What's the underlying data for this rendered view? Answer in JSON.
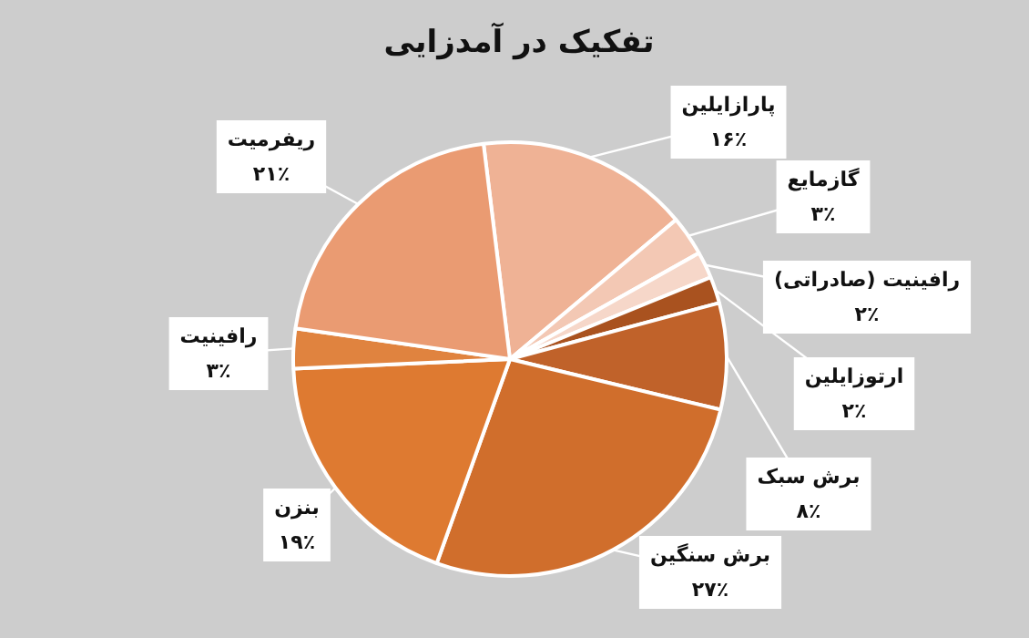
{
  "chart_data": {
    "type": "pie",
    "title": "تفکیک در آمدزایی",
    "categories": [
      "پارازایلین",
      "گازمایع",
      "رافینیت (صادراتی)",
      "ارتوزایلین",
      "برش سبک",
      "برش سنگین",
      "بنزن",
      "رافینیت",
      "ریفرمیت"
    ],
    "values": [
      16,
      3,
      2,
      2,
      8,
      27,
      19,
      3,
      21
    ],
    "value_labels": [
      "۱۶٪",
      "۳٪",
      "۲٪",
      "۲٪",
      "۸٪",
      "۲۷٪",
      "۱۹٪",
      "۳٪",
      "۲۱٪"
    ],
    "colors": [
      "#efb295",
      "#f3c8b4",
      "#f6d7c9",
      "#a9521f",
      "#c0622a",
      "#d06e2c",
      "#de7a31",
      "#e0833f",
      "#ea9b72"
    ],
    "legend": false
  }
}
